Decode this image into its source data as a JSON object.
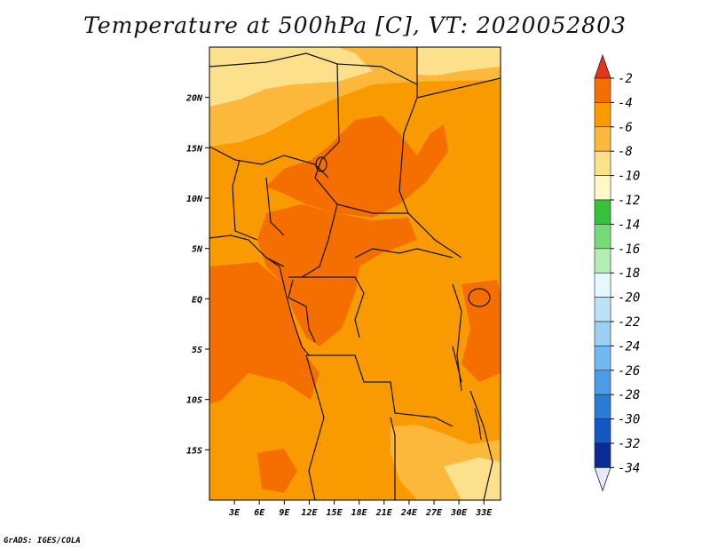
{
  "title": "Temperature at 500hPa [C], VT: 2020052803",
  "credit": "GrADS: IGES/COLA",
  "map": {
    "lon_range": [
      0,
      35
    ],
    "lat_range": [
      -20,
      25
    ],
    "x_ticks": [
      "3E",
      "6E",
      "9E",
      "12E",
      "15E",
      "18E",
      "21E",
      "24E",
      "27E",
      "30E",
      "33E"
    ],
    "x_tick_values": [
      3,
      6,
      9,
      12,
      15,
      18,
      21,
      24,
      27,
      30,
      33
    ],
    "y_ticks": [
      "20N",
      "15N",
      "10N",
      "5N",
      "EQ",
      "5S",
      "10S",
      "15S"
    ],
    "y_tick_values": [
      20,
      15,
      10,
      5,
      0,
      -5,
      -10,
      -15
    ]
  },
  "colorbar": {
    "labels": [
      "-2",
      "-4",
      "-6",
      "-8",
      "-10",
      "-12",
      "-14",
      "-16",
      "-18",
      "-20",
      "-22",
      "-24",
      "-26",
      "-28",
      "-30",
      "-32",
      "-34"
    ],
    "colors": [
      "#f04a00",
      "#f46e00",
      "#f99b00",
      "#fbb83a",
      "#fde08c",
      "#fff8c8",
      "#36c23a",
      "#78d978",
      "#b4eeb4",
      "#e6f8ff",
      "#bce2fa",
      "#9ccff6",
      "#74b8f2",
      "#4c9be8",
      "#2a7ad8",
      "#1557c4",
      "#0a2a96",
      "#0a1270"
    ],
    "upper_arrow_color": "#e8341c",
    "lower_arrow_color": "#e8e8ff"
  }
}
